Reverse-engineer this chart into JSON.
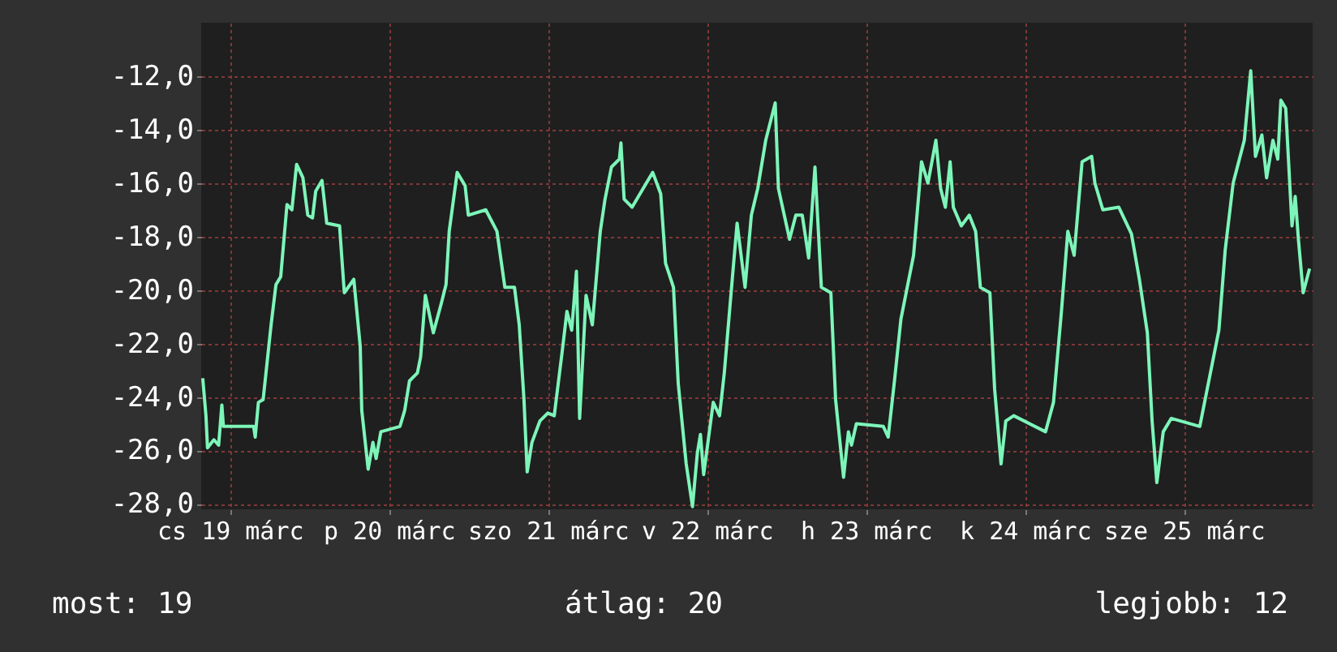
{
  "chart_data": {
    "type": "line",
    "line_style": "solid",
    "x": [
      "--03-18T19:55",
      "--03-18T20:24",
      "--03-18T20:38",
      "--03-18T21:36",
      "--03-18T22:19",
      "--03-18T22:48",
      "--03-18T23:02",
      "--03-19T03:36",
      "--03-19T03:50",
      "--03-19T04:19",
      "--03-19T05:02",
      "--03-19T06:14",
      "--03-19T06:58",
      "--03-19T07:41",
      "--03-19T08:38",
      "--03-19T09:22",
      "--03-19T10:05",
      "--03-19T11:02",
      "--03-19T11:46",
      "--03-19T12:29",
      "--03-19T12:58",
      "--03-19T13:55",
      "--03-19T14:38",
      "--03-19T16:34",
      "--03-19T17:17",
      "--03-19T18:43",
      "--03-19T19:41",
      "--03-19T19:55",
      "--03-19T20:53",
      "--03-19T21:36",
      "--03-19T22:05",
      "--03-19T22:48",
      "--03-20T01:41",
      "--03-20T02:24",
      "--03-20T03:07",
      "--03-20T04:19",
      "--03-20T04:48",
      "--03-20T05:31",
      "--03-20T06:43",
      "--03-20T07:55",
      "--03-20T08:38",
      "--03-20T09:07",
      "--03-20T10:19",
      "--03-20T11:31",
      "--03-20T12:00",
      "--03-20T14:38",
      "--03-20T16:19",
      "--03-20T17:31",
      "--03-20T18:58",
      "--03-20T19:41",
      "--03-20T20:24",
      "--03-20T20:53",
      "--03-20T21:36",
      "--03-20T22:48",
      "--03-21T00:00",
      "--03-21T00:58",
      "--03-21T02:10",
      "--03-21T02:53",
      "--03-21T03:36",
      "--03-21T04:19",
      "--03-21T04:48",
      "--03-21T05:46",
      "--03-21T06:43",
      "--03-21T07:55",
      "--03-21T08:38",
      "--03-21T09:36",
      "--03-21T10:48",
      "--03-21T11:02",
      "--03-21T11:31",
      "--03-21T12:43",
      "--03-21T14:38",
      "--03-21T15:50",
      "--03-21T17:02",
      "--03-21T17:46",
      "--03-21T18:58",
      "--03-21T19:41",
      "--03-21T20:53",
      "--03-21T21:50",
      "--03-21T22:34",
      "--03-21T23:02",
      "--03-21T23:31",
      "--03-22T00:58",
      "--03-22T01:55",
      "--03-22T02:38",
      "--03-22T03:50",
      "--03-22T04:34",
      "--03-22T05:46",
      "--03-22T06:43",
      "--03-22T07:41",
      "--03-22T08:53",
      "--03-22T10:19",
      "--03-22T10:48",
      "--03-22T12:29",
      "--03-22T13:26",
      "--03-22T14:24",
      "--03-22T15:22",
      "--03-22T16:19",
      "--03-22T17:17",
      "--03-22T18:43",
      "--03-22T19:26",
      "--03-22T20:38",
      "--03-22T21:22",
      "--03-22T21:50",
      "--03-22T22:34",
      "--03-23T02:38",
      "--03-23T03:22",
      "--03-23T04:19",
      "--03-23T05:17",
      "--03-23T06:29",
      "--03-23T07:12",
      "--03-23T08:24",
      "--03-23T09:22",
      "--03-23T10:34",
      "--03-23T11:17",
      "--03-23T12:00",
      "--03-23T12:43",
      "--03-23T13:12",
      "--03-23T14:24",
      "--03-23T15:36",
      "--03-23T16:34",
      "--03-23T17:17",
      "--03-23T18:43",
      "--03-23T19:26",
      "--03-23T20:24",
      "--03-23T21:07",
      "--03-23T22:19",
      "--03-24T03:07",
      "--03-24T04:19",
      "--03-24T05:31",
      "--03-24T06:29",
      "--03-24T07:26",
      "--03-24T08:38",
      "--03-24T10:05",
      "--03-24T10:34",
      "--03-24T11:46",
      "--03-24T14:10",
      "--03-24T16:05",
      "--03-24T17:17",
      "--03-24T18:29",
      "--03-24T19:12",
      "--03-24T19:55",
      "--03-24T20:53",
      "--03-24T22:05",
      "--03-25T02:24",
      "--03-25T03:36",
      "--03-25T05:17",
      "--03-25T06:14",
      "--03-25T07:26",
      "--03-25T09:07",
      "--03-25T10:05",
      "--03-25T10:48",
      "--03-25T11:46",
      "--03-25T12:29",
      "--03-25T13:26",
      "--03-25T14:10",
      "--03-25T14:38",
      "--03-25T15:22",
      "--03-25T16:19",
      "--03-25T16:48",
      "--03-25T17:17",
      "--03-25T18:00",
      "--03-25T18:58"
    ],
    "series": [
      {
        "color": "#7df5b9",
        "values": [
          -23.3,
          -24.7,
          -25.9,
          -25.6,
          -25.8,
          -24.3,
          -25.1,
          -25.1,
          -25.5,
          -24.2,
          -24.1,
          -21.3,
          -19.8,
          -19.5,
          -16.8,
          -17.0,
          -15.3,
          -15.8,
          -17.2,
          -17.3,
          -16.3,
          -15.9,
          -17.5,
          -17.6,
          -20.1,
          -19.6,
          -22.1,
          -24.5,
          -26.7,
          -25.7,
          -26.3,
          -25.3,
          -25.1,
          -24.5,
          -23.4,
          -23.1,
          -22.5,
          -20.2,
          -21.6,
          -20.5,
          -19.8,
          -17.8,
          -15.6,
          -16.1,
          -17.2,
          -17.0,
          -17.8,
          -19.9,
          -19.9,
          -21.3,
          -24.1,
          -26.8,
          -25.7,
          -24.9,
          -24.6,
          -24.7,
          -22.3,
          -20.8,
          -21.5,
          -19.3,
          -24.8,
          -20.2,
          -21.3,
          -17.8,
          -16.6,
          -15.4,
          -15.1,
          -14.5,
          -16.6,
          -16.9,
          -16.1,
          -15.6,
          -16.4,
          -19.0,
          -19.9,
          -23.5,
          -26.5,
          -28.1,
          -26.1,
          -25.4,
          -26.9,
          -24.2,
          -24.7,
          -23.1,
          -19.6,
          -17.5,
          -19.9,
          -17.2,
          -16.2,
          -14.4,
          -13.0,
          -16.2,
          -18.1,
          -17.2,
          -17.2,
          -18.8,
          -15.4,
          -19.9,
          -20.1,
          -24.1,
          -27.0,
          -25.3,
          -25.8,
          -25.0,
          -25.1,
          -25.5,
          -23.4,
          -21.1,
          -19.6,
          -18.7,
          -15.2,
          -16.0,
          -14.4,
          -16.2,
          -16.9,
          -15.2,
          -16.9,
          -17.6,
          -17.2,
          -17.8,
          -19.9,
          -20.1,
          -23.7,
          -26.5,
          -24.9,
          -24.7,
          -25.3,
          -24.2,
          -20.8,
          -17.8,
          -18.7,
          -15.2,
          -15.0,
          -16.0,
          -17.0,
          -16.9,
          -17.9,
          -19.6,
          -21.6,
          -24.9,
          -27.2,
          -25.3,
          -24.8,
          -25.1,
          -23.6,
          -21.5,
          -18.5,
          -16.0,
          -14.4,
          -11.8,
          -15.0,
          -14.2,
          -15.8,
          -14.4,
          -15.1,
          -12.9,
          -13.2,
          -17.6,
          -16.5,
          -18.1,
          -20.1,
          -19.2
        ]
      }
    ],
    "xlim": [
      "--03-18T19:41",
      "--03-25T19:26"
    ],
    "xticks": [
      {
        "value": "--03-19",
        "label": "cs 19 márc"
      },
      {
        "value": "--03-20",
        "label": "p 20 márc"
      },
      {
        "value": "--03-21",
        "label": "szo 21 márc"
      },
      {
        "value": "--03-22",
        "label": "v 22 márc"
      },
      {
        "value": "--03-23",
        "label": "h 23 márc"
      },
      {
        "value": "--03-24",
        "label": "k 24 márc"
      },
      {
        "value": "--03-25",
        "label": "sze 25 márc"
      }
    ],
    "ylim": [
      -28.2,
      -10
    ],
    "yticks": [
      {
        "value": -28,
        "label": "-28,0"
      },
      {
        "value": -26,
        "label": "-26,0"
      },
      {
        "value": -24,
        "label": "-24,0"
      },
      {
        "value": -22,
        "label": "-22,0"
      },
      {
        "value": -20,
        "label": "-20,0"
      },
      {
        "value": -18,
        "label": "-18,0"
      },
      {
        "value": -16,
        "label": "-16,0"
      },
      {
        "value": -14,
        "label": "-14,0"
      },
      {
        "value": -12,
        "label": "-12,0"
      }
    ],
    "grid": true,
    "annotations": [
      "most: 19",
      "átlag: 20",
      "legjobb: 12"
    ]
  }
}
